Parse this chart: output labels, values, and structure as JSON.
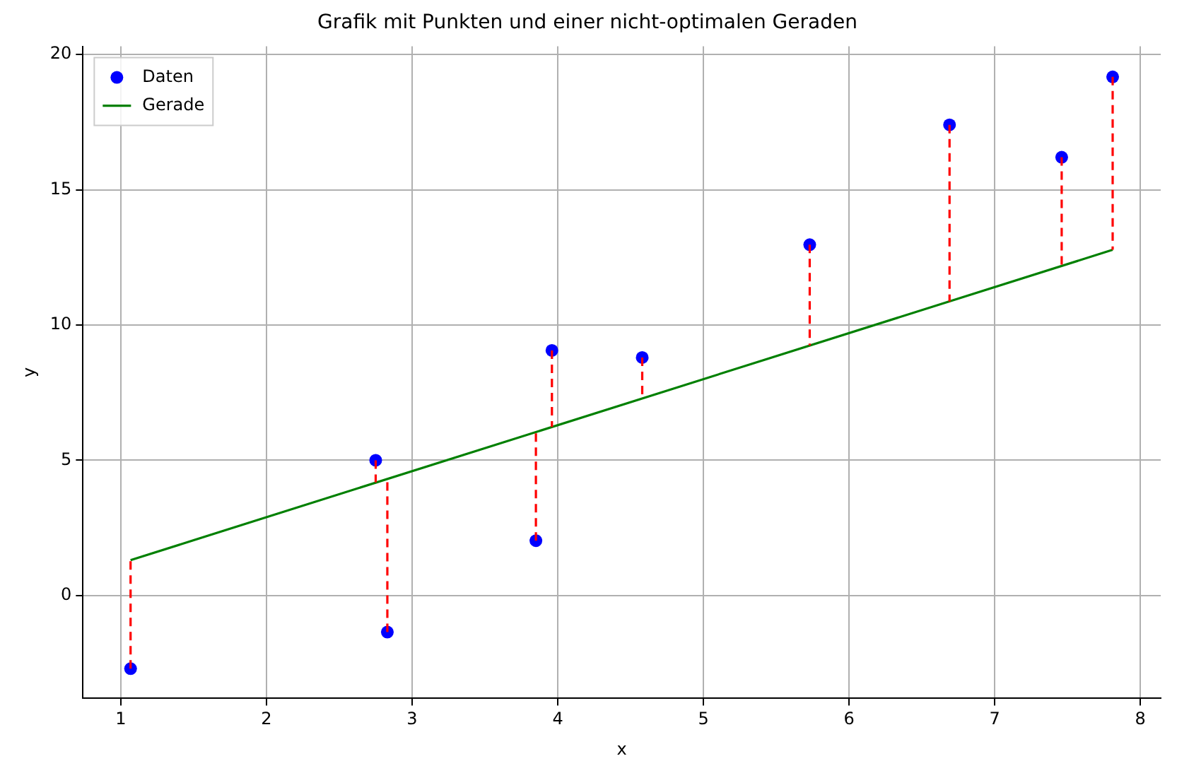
{
  "chart_data": {
    "type": "scatter",
    "title": "Grafik mit Punkten und einer nicht-optimalen Geraden",
    "xlabel": "x",
    "ylabel": "y",
    "xlim": [
      0.74,
      8.14
    ],
    "ylim": [
      -3.8,
      20.3
    ],
    "xticks": [
      1,
      2,
      3,
      4,
      5,
      6,
      7,
      8
    ],
    "yticks": [
      0,
      5,
      10,
      15,
      20
    ],
    "grid": true,
    "legend": "top left",
    "series": [
      {
        "type": "line",
        "color": "#ff0000",
        "line_style": "dashed",
        "marker": "none",
        "x": [
          1.067,
          1.067
        ],
        "values": [
          -2.7,
          1.31
        ]
      },
      {
        "type": "line",
        "color": "#ff0000",
        "line_style": "dashed",
        "marker": "none",
        "x": [
          2.75,
          2.75
        ],
        "values": [
          5.0,
          4.18
        ]
      },
      {
        "type": "line",
        "color": "#ff0000",
        "line_style": "dashed",
        "marker": "none",
        "x": [
          2.83,
          2.83
        ],
        "values": [
          -1.35,
          4.31
        ]
      },
      {
        "type": "line",
        "color": "#ff0000",
        "line_style": "dashed",
        "marker": "none",
        "x": [
          3.85,
          3.85
        ],
        "values": [
          2.03,
          6.05
        ]
      },
      {
        "type": "line",
        "color": "#ff0000",
        "line_style": "dashed",
        "marker": "none",
        "x": [
          3.96,
          3.96
        ],
        "values": [
          9.06,
          6.23
        ]
      },
      {
        "type": "line",
        "color": "#ff0000",
        "line_style": "dashed",
        "marker": "none",
        "x": [
          4.58,
          4.58
        ],
        "values": [
          8.8,
          7.29
        ]
      },
      {
        "type": "line",
        "color": "#ff0000",
        "line_style": "dashed",
        "marker": "none",
        "x": [
          5.73,
          5.73
        ],
        "values": [
          12.97,
          9.24
        ]
      },
      {
        "type": "line",
        "color": "#ff0000",
        "line_style": "dashed",
        "marker": "none",
        "x": [
          6.69,
          6.69
        ],
        "values": [
          17.4,
          10.87
        ]
      },
      {
        "type": "line",
        "color": "#ff0000",
        "line_style": "dashed",
        "marker": "none",
        "x": [
          7.46,
          7.46
        ],
        "values": [
          16.2,
          12.18
        ]
      },
      {
        "type": "line",
        "color": "#ff0000",
        "line_style": "dashed",
        "marker": "none",
        "x": [
          7.81,
          7.81
        ],
        "values": [
          19.17,
          12.78
        ]
      },
      {
        "type": "scatter",
        "name": "Daten",
        "color": "#0000ff",
        "marker": "circle",
        "x": [
          1.067,
          2.75,
          2.83,
          3.85,
          3.96,
          4.58,
          5.73,
          6.69,
          7.46,
          7.81
        ],
        "values": [
          -2.7,
          5.0,
          -1.35,
          2.03,
          9.06,
          8.8,
          12.97,
          17.4,
          16.2,
          19.17
        ]
      },
      {
        "type": "line",
        "name": "Gerade",
        "color": "#008000",
        "line_style": "solid",
        "marker": "none",
        "x": [
          1.067,
          7.81
        ],
        "values": [
          1.31,
          12.78
        ]
      }
    ]
  }
}
